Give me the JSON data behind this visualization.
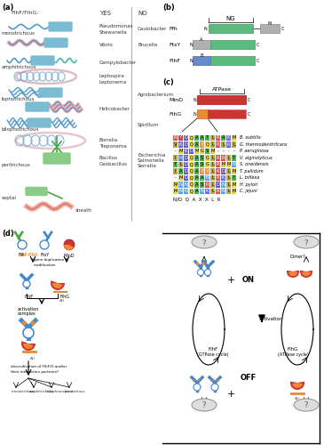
{
  "panel_a": {
    "title": "(a)",
    "header_flhfg": "FlhF/FlhG:",
    "header_yes": "YES",
    "header_no": "NO",
    "rows": [
      {
        "pattern": "monotrichous",
        "yes": [
          "Pseudomonas",
          "Shewanella"
        ],
        "no": [
          "Caulobacter"
        ]
      },
      {
        "pattern": "",
        "yes": [
          "Vibrio"
        ],
        "no": [
          "Brucella"
        ]
      },
      {
        "pattern": "amphitrichous",
        "yes": [
          "Campylobacter"
        ],
        "no": []
      },
      {
        "pattern": "",
        "yes": [
          "Leptospira",
          "Leptonema"
        ],
        "no": []
      },
      {
        "pattern": "lophotrichous",
        "yes": [],
        "no": [
          "Agrobacterium"
        ]
      },
      {
        "pattern": "",
        "yes": [
          "Helicobacter"
        ],
        "no": []
      },
      {
        "pattern": "bilophotrichous",
        "yes": [],
        "no": [
          "Spirillum"
        ]
      },
      {
        "pattern": "",
        "yes": [
          "Borrelia",
          "Treponema"
        ],
        "no": []
      },
      {
        "pattern": "peritrichous",
        "yes": [
          "Bacillus",
          "Geobacillus"
        ],
        "no": [
          "Escherichia",
          "Salmonella",
          "Serratia"
        ]
      },
      {
        "pattern": "septal",
        "yes": [],
        "no": []
      }
    ],
    "sheath_label": "sheath"
  },
  "panel_b": {
    "title": "(b)",
    "proteins": [
      "Ffh",
      "FtsY",
      "FlhF"
    ]
  },
  "panel_c": {
    "title": "(c)",
    "sequence_lines": [
      {
        "seq": "R Y D Q A A T L R A K M",
        "org": "B. subtilis"
      },
      {
        "seq": "V K D Q A E Q L R L K L",
        "org": "G. thermodenitrifcans"
      },
      {
        "seq": "- M K D M G S M - - - -",
        "org": "P. aeruginosa"
      },
      {
        "seq": "I H D Q A S G L R R L T",
        "org": "V. alginolyticus"
      },
      {
        "seq": "T L D Q A S G L R M M N",
        "org": "S. oneidensis"
      },
      {
        "seq": "I A D Q A E E L R D L M",
        "org": "T. pallidum"
      },
      {
        "seq": "- M D Q A A N L R K L T",
        "org": "L. biflexa"
      },
      {
        "seq": "M N N Q A S R L D N L M",
        "org": "H. pylori"
      },
      {
        "seq": "M N N Q A N K L R N L M",
        "org": "C. jejuni"
      }
    ]
  },
  "bg_color": "#ffffff",
  "text_color": "#000000",
  "blue_color": "#4488cc",
  "green_color": "#44aa44",
  "red_color": "#cc3333",
  "orange_color": "#dd8833"
}
